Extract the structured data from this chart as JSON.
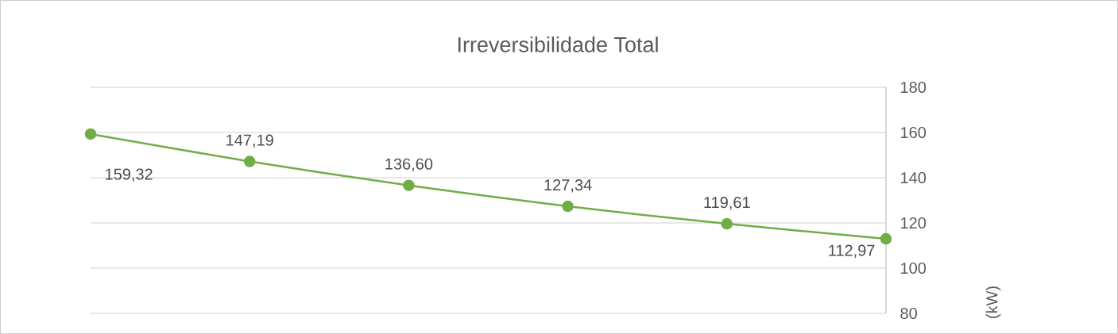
{
  "chart_data": {
    "type": "line",
    "title": "Irreversibilidade Total",
    "ylabel": "(kW)",
    "categories": [
      null,
      null,
      null,
      null,
      null,
      null
    ],
    "series": [
      {
        "color": "#70ad47",
        "values": [
          159.32,
          147.19,
          136.6,
          127.34,
          119.61,
          112.97
        ],
        "value_labels": [
          "159,32",
          "147,19",
          "136,60",
          "127,34",
          "119,61",
          "112,97"
        ]
      }
    ],
    "ylim": [
      80,
      180
    ],
    "yticks": [
      80,
      100,
      120,
      140,
      160,
      180
    ],
    "grid": true,
    "marker": "circle",
    "tick_labels": "y"
  }
}
